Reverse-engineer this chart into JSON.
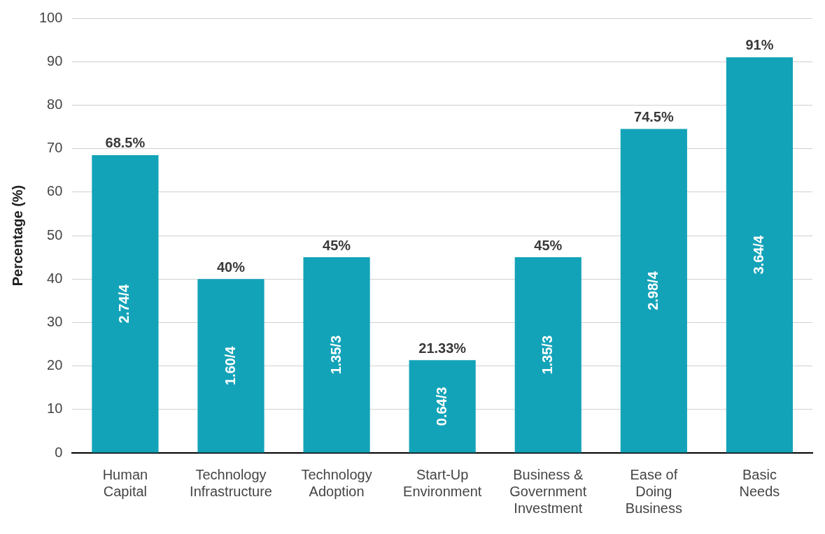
{
  "chart_data": {
    "type": "bar",
    "ylabel": "Percentage (%)",
    "categories": [
      "Human Capital",
      "Technology Infrastructure",
      "Technology Adoption",
      "Start-Up Environment",
      "Business & Government Investment",
      "Ease of Doing Business",
      "Basic Needs"
    ],
    "values": [
      68.5,
      40,
      45,
      21.33,
      45,
      74.5,
      91
    ],
    "value_labels": [
      "68.5%",
      "40%",
      "45%",
      "21.33%",
      "45%",
      "74.5%",
      "91%"
    ],
    "color": "#13a3b8",
    "ylim": [
      0,
      100
    ],
    "yticks": [
      0,
      10,
      20,
      30,
      40,
      50,
      60,
      70,
      80,
      90,
      100
    ],
    "grid": "y",
    "legend": false,
    "annotations": [
      "2.74/4",
      "1.60/4",
      "1.35/3",
      "0.64/3",
      "1.35/3",
      "2.98/4",
      "3.64/4"
    ]
  }
}
